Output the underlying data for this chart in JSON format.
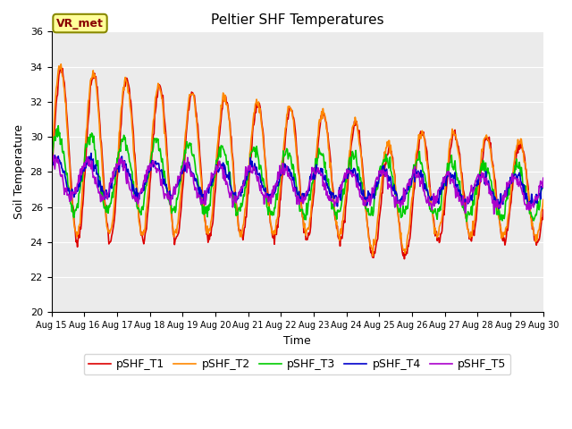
{
  "title": "Peltier SHF Temperatures",
  "xlabel": "Time",
  "ylabel": "Soil Temperature",
  "ylim": [
    20,
    36
  ],
  "xlim_days": [
    0,
    15
  ],
  "x_tick_labels": [
    "Aug 15",
    "Aug 16",
    "Aug 17",
    "Aug 18",
    "Aug 19",
    "Aug 20",
    "Aug 21",
    "Aug 22",
    "Aug 23",
    "Aug 24",
    "Aug 25",
    "Aug 26",
    "Aug 27",
    "Aug 28",
    "Aug 29",
    "Aug 30"
  ],
  "annotation": "VR_met",
  "plot_bg_color": "#ebebeb",
  "fig_bg_color": "#ffffff",
  "grid_color": "#ffffff",
  "series": [
    {
      "label": "pSHF_T1",
      "color": "#dd0000"
    },
    {
      "label": "pSHF_T2",
      "color": "#ff8800"
    },
    {
      "label": "pSHF_T3",
      "color": "#00cc00"
    },
    {
      "label": "pSHF_T4",
      "color": "#0000cc"
    },
    {
      "label": "pSHF_T5",
      "color": "#aa00cc"
    }
  ],
  "title_fontsize": 11,
  "axis_label_fontsize": 9,
  "tick_fontsize": 8,
  "legend_fontsize": 9
}
